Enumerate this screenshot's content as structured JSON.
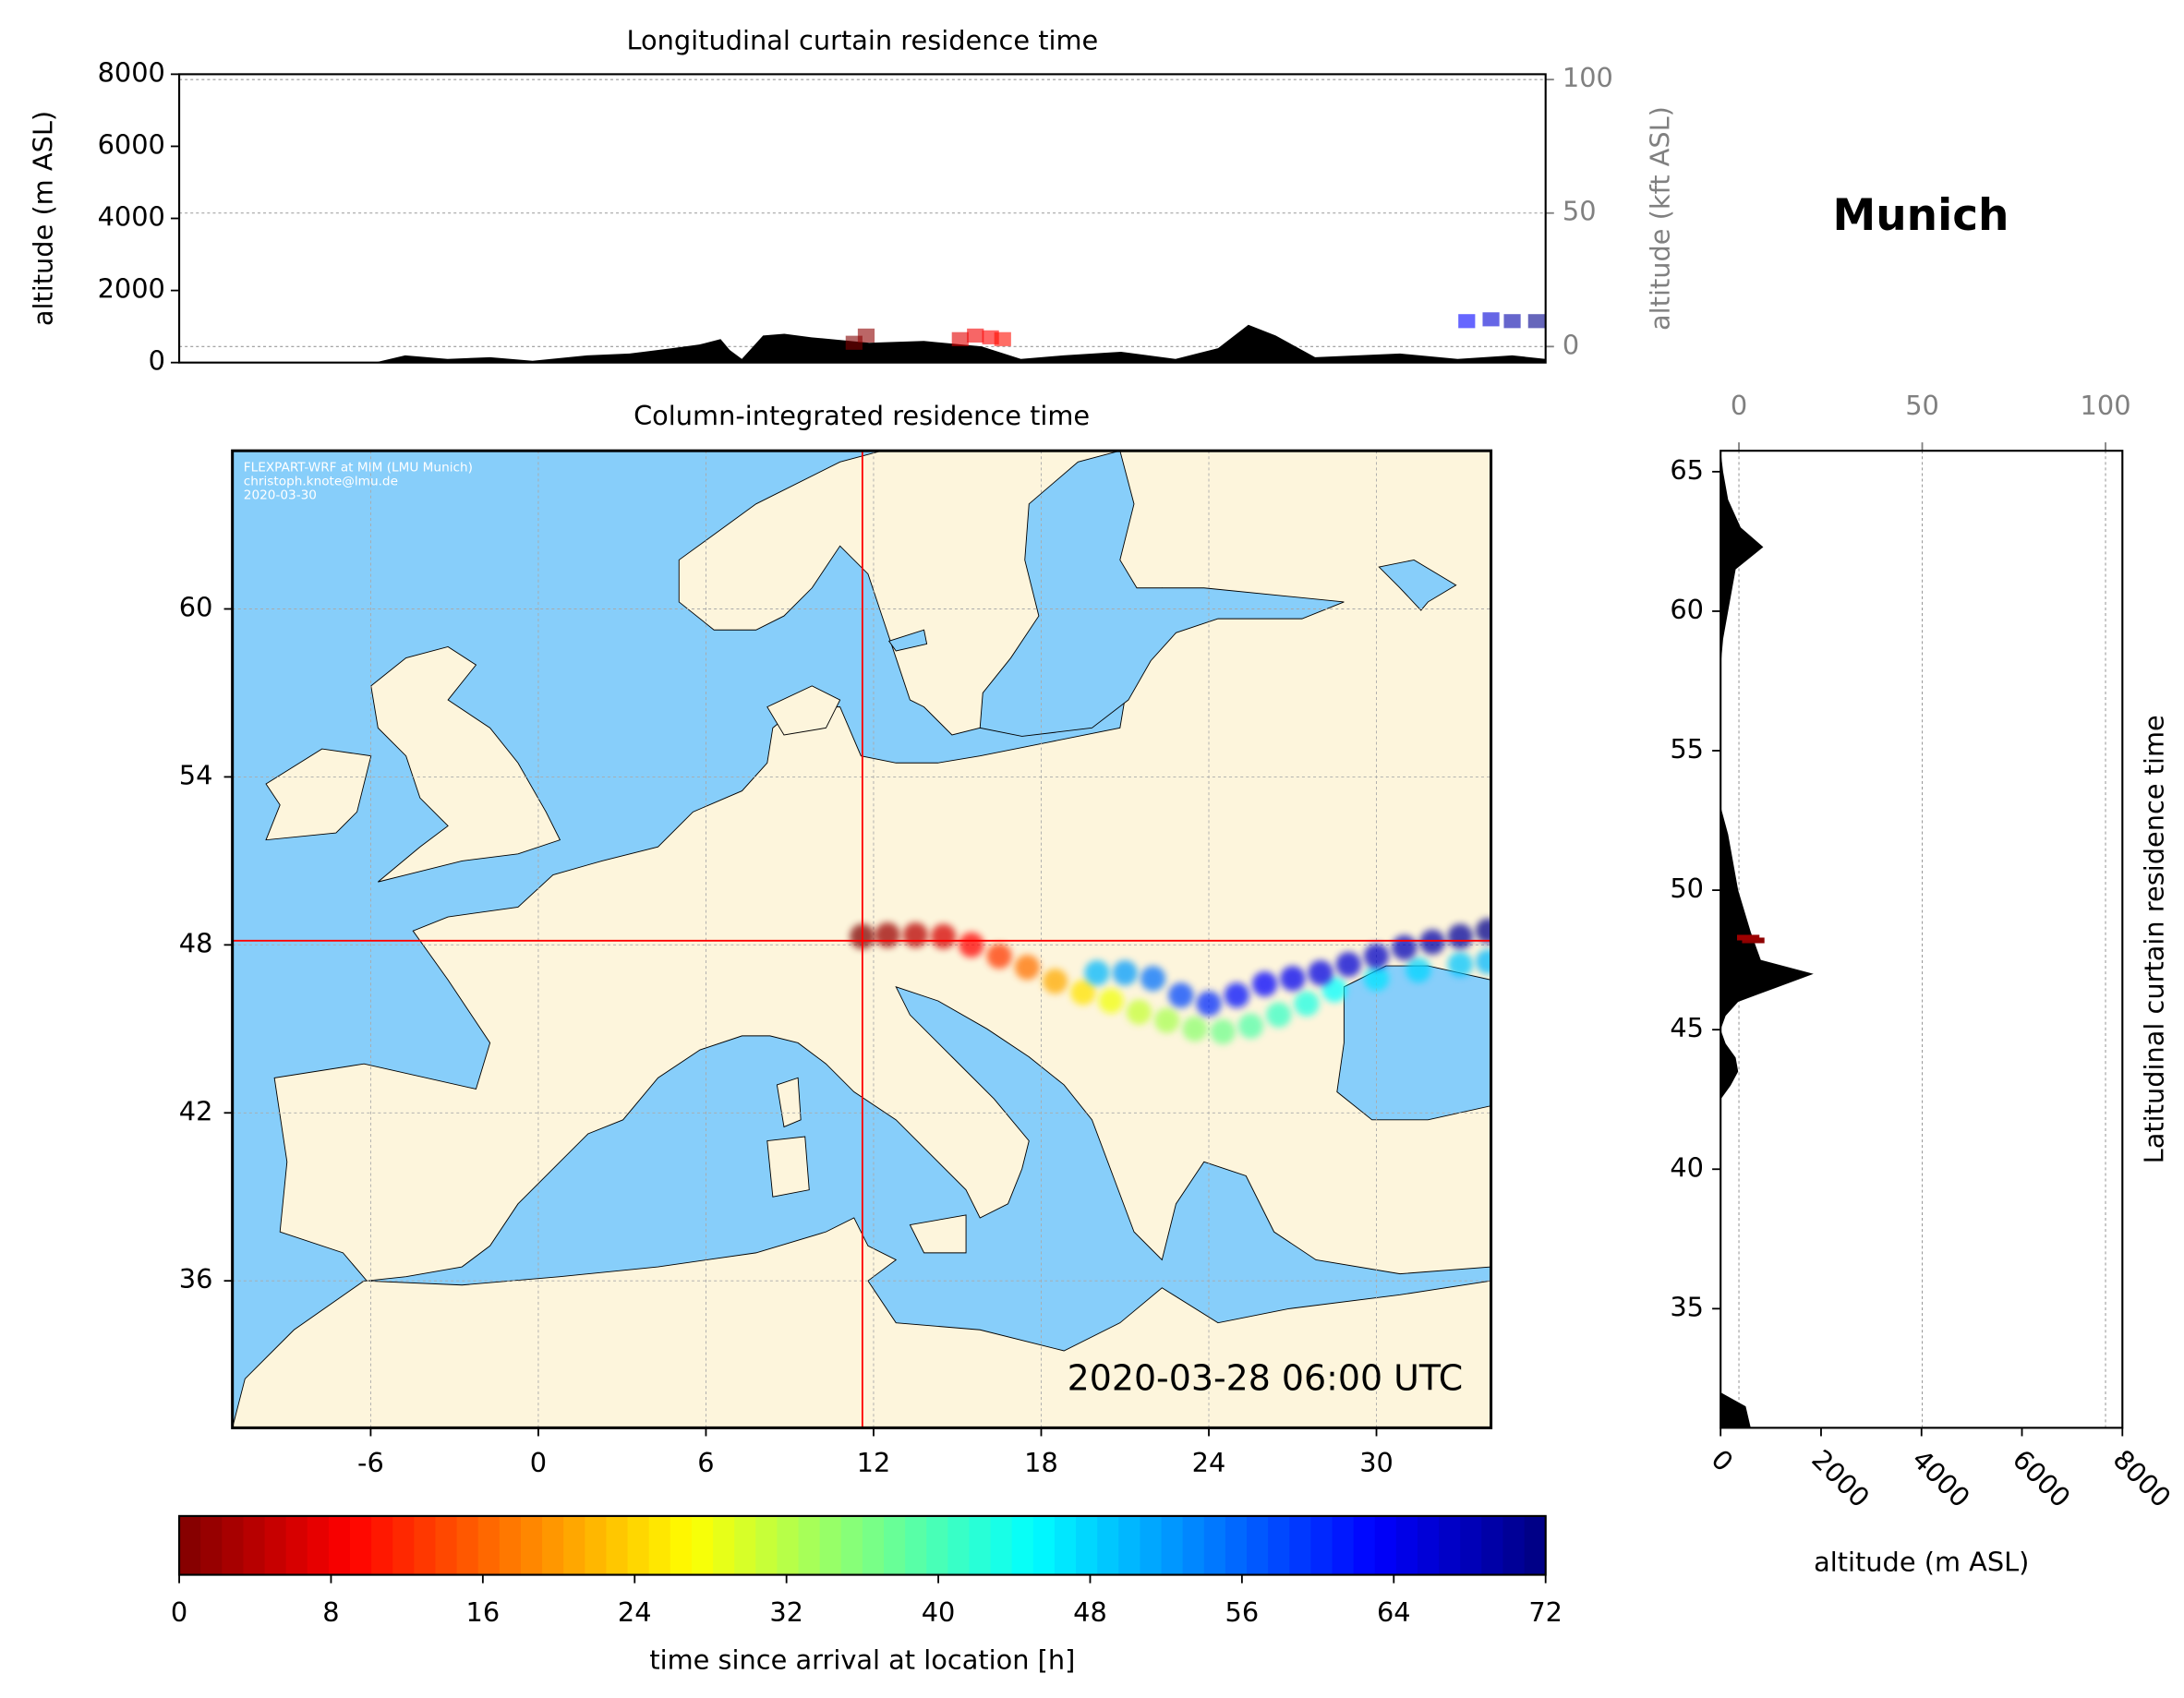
{
  "title": "Munich",
  "chart_data": [
    {
      "type": "area",
      "title": "Longitudinal curtain residence time",
      "ylabel": "altitude (m ASL)",
      "y2label": "altitude (kft ASL)",
      "xlim": [
        -10.95,
        34.1
      ],
      "ylim": [
        0,
        8000
      ],
      "yticks": [
        0,
        2000,
        4000,
        6000,
        8000
      ],
      "y2lim": [
        -6,
        102
      ],
      "y2ticks": [
        0,
        50,
        100
      ],
      "grid": true,
      "color": "#000000",
      "x": [
        -10.95,
        -4.5,
        -3.5,
        -2.1,
        -0.7,
        0.7,
        2.5,
        3.9,
        5.3,
        6.2,
        6.9,
        7.2,
        7.6,
        8.3,
        9.0,
        9.9,
        11.8,
        13.6,
        15.5,
        16.8,
        18.2,
        20.1,
        21.9,
        23.3,
        24.3,
        25.2,
        26.5,
        29.3,
        31.2,
        33.0,
        34.1
      ],
      "values": [
        0,
        0,
        200,
        100,
        150,
        50,
        200,
        250,
        400,
        500,
        650,
        350,
        100,
        750,
        800,
        700,
        550,
        600,
        450,
        100,
        200,
        300,
        100,
        400,
        1050,
        750,
        150,
        250,
        100,
        200,
        100
      ],
      "particles": {
        "x": [
          11.3,
          11.7,
          14.8,
          15.3,
          15.8,
          16.2,
          31.5,
          32.3,
          33.0,
          33.8
        ],
        "values": [
          550,
          750,
          650,
          750,
          700,
          650,
          1150,
          1200,
          1150,
          1150
        ],
        "time": [
          0,
          1,
          7,
          8,
          9,
          10,
          63,
          66,
          69,
          71
        ]
      }
    },
    {
      "type": "map",
      "title": "Column-integrated residence time",
      "xlim": [
        -10.95,
        34.1
      ],
      "ylim": [
        30.75,
        65.65
      ],
      "xticks": [
        -6,
        0,
        6,
        12,
        18,
        24,
        30
      ],
      "yticks": [
        36,
        42,
        48,
        54,
        60
      ],
      "grid": true,
      "credits": [
        "FLEXPART-WRF at MIM (LMU Munich)",
        "christoph.knote@lmu.de",
        "2020-03-30"
      ],
      "timestamp": "2020-03-28 06:00 UTC",
      "location": {
        "x": 11.6,
        "y": 48.15
      },
      "marker_color": "#ff0000",
      "series": [
        {
          "x": [
            11.6,
            12.5,
            13.5,
            14.5,
            15.5,
            16.5,
            17.5,
            18.5,
            19.5,
            20.5,
            21.5,
            22.5,
            23.5,
            24.5,
            25.5,
            26.5,
            27.5,
            28.5,
            30,
            31.5,
            33,
            34
          ],
          "y": [
            48.3,
            48.35,
            48.35,
            48.3,
            48.0,
            47.6,
            47.2,
            46.7,
            46.3,
            46.0,
            45.6,
            45.3,
            45.0,
            44.9,
            45.1,
            45.5,
            45.9,
            46.4,
            46.8,
            47.1,
            47.3,
            47.4
          ],
          "time": [
            0,
            2,
            4,
            6,
            9,
            13,
            17,
            21,
            25,
            28,
            31,
            33,
            35,
            37,
            39,
            41,
            43,
            45,
            47,
            48,
            49,
            50
          ]
        },
        {
          "x": [
            20,
            21,
            22,
            23,
            24,
            25,
            26,
            27,
            28,
            29,
            30,
            31,
            32,
            33,
            34
          ],
          "y": [
            47.0,
            47.0,
            46.8,
            46.2,
            45.9,
            46.2,
            46.6,
            46.8,
            47.0,
            47.3,
            47.6,
            47.9,
            48.1,
            48.3,
            48.5
          ],
          "time": [
            50,
            52,
            55,
            58,
            60,
            62,
            63,
            64,
            65,
            66,
            67,
            68,
            69,
            70,
            71
          ]
        }
      ]
    },
    {
      "type": "colorbar",
      "colormap": "jet_r",
      "xlim": [
        0,
        72
      ],
      "xticks": [
        0,
        8,
        16,
        24,
        32,
        40,
        48,
        56,
        64,
        72
      ],
      "xlabel": "time since arrival at location [h]"
    },
    {
      "type": "area",
      "orientation": "horizontal",
      "ylabel": "Latitudinal curtain residence time",
      "xlabel": "altitude (m ASL)",
      "ylim": [
        30.73,
        65.75
      ],
      "yticks": [
        35,
        40,
        45,
        50,
        55,
        60,
        65
      ],
      "xlim": [
        0,
        8000
      ],
      "xticks": [
        0,
        2000,
        4000,
        6000,
        8000
      ],
      "x2lim": [
        -5,
        104.6
      ],
      "x2ticks": [
        0,
        50,
        100
      ],
      "grid": true,
      "color": "#000000",
      "y": [
        65.75,
        65,
        64,
        63,
        62.3,
        61.5,
        60,
        59,
        58,
        53,
        52,
        50,
        48.5,
        47.5,
        47,
        46.5,
        46,
        45.5,
        45,
        44.5,
        44,
        43.5,
        43,
        42.5,
        32,
        31.5,
        30.73
      ],
      "values": [
        0,
        50,
        150,
        400,
        850,
        300,
        150,
        50,
        0,
        0,
        150,
        350,
        600,
        800,
        1850,
        1100,
        350,
        100,
        0,
        100,
        300,
        350,
        200,
        0,
        0,
        500,
        600
      ],
      "particles": {
        "y": [
          48.2,
          48.3
        ],
        "values": [
          650,
          550
        ],
        "time": [
          1,
          2
        ]
      }
    }
  ]
}
